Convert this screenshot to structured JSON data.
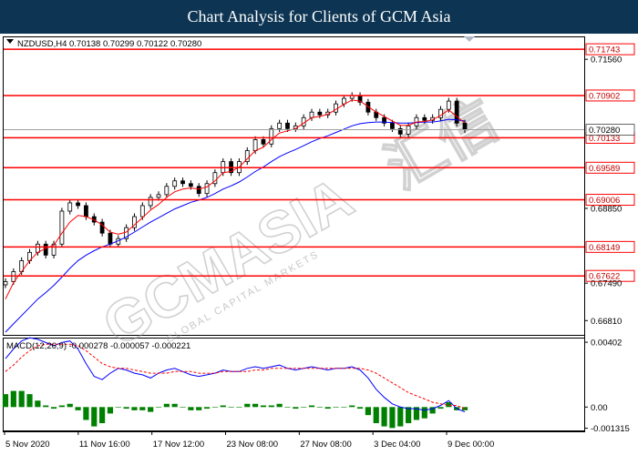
{
  "header": {
    "title": "Chart Analysis for Clients of GCM Asia"
  },
  "watermark": {
    "brand": "GCMASIA",
    "chinese": "汇信",
    "tagline": "GLOBAL CAPITAL MARKETS"
  },
  "colors": {
    "header_bg": "#0d3553",
    "level_line": "#ff0000",
    "ma_fast": "#ff0000",
    "ma_slow": "#0000ff",
    "macd_line": "#0000ff",
    "signal_line": "#ff0000",
    "histogram": "#008000"
  },
  "chart_data": [
    {
      "type": "line",
      "symbol_info": "NZDUSD,H4  0.70138 0.70299 0.70122 0.70280",
      "ylim": [
        0.6655,
        0.7196
      ],
      "y_ticks": [
        "0.71560",
        "0.68850",
        "0.67490",
        "0.66810"
      ],
      "x_ticks": [
        "5 Nov 2020",
        "11 Nov 16:00",
        "17 Nov 12:00",
        "23 Nov 08:00",
        "27 Nov 08:00",
        "3 Dec 04:00",
        "9 Dec 00:00"
      ],
      "current_price": "0.70280",
      "levels": [
        "0.71743",
        "0.70902",
        "0.70133",
        "0.69589",
        "0.69006",
        "0.68149",
        "0.67622"
      ],
      "close_series": [
        0.6752,
        0.677,
        0.679,
        0.6805,
        0.682,
        0.68,
        0.682,
        0.688,
        0.6895,
        0.689,
        0.687,
        0.686,
        0.684,
        0.682,
        0.683,
        0.685,
        0.687,
        0.689,
        0.6905,
        0.691,
        0.6925,
        0.6935,
        0.693,
        0.6925,
        0.6912,
        0.693,
        0.695,
        0.697,
        0.695,
        0.697,
        0.699,
        0.701,
        0.7002,
        0.703,
        0.704,
        0.703,
        0.7035,
        0.705,
        0.706,
        0.7055,
        0.706,
        0.7075,
        0.7085,
        0.709,
        0.7078,
        0.706,
        0.705,
        0.704,
        0.703,
        0.702,
        0.7035,
        0.705,
        0.7045,
        0.705,
        0.7065,
        0.708,
        0.704,
        0.7028
      ],
      "ma_fast": [
        0.672,
        0.675,
        0.677,
        0.679,
        0.6805,
        0.6812,
        0.6818,
        0.684,
        0.686,
        0.6872,
        0.687,
        0.6864,
        0.6855,
        0.6842,
        0.6838,
        0.6842,
        0.6855,
        0.6868,
        0.6882,
        0.6892,
        0.6905,
        0.6915,
        0.692,
        0.6922,
        0.692,
        0.6924,
        0.6935,
        0.695,
        0.6952,
        0.696,
        0.6975,
        0.699,
        0.6996,
        0.701,
        0.7022,
        0.7026,
        0.703,
        0.704,
        0.705,
        0.7052,
        0.7056,
        0.7065,
        0.7074,
        0.7082,
        0.708,
        0.707,
        0.706,
        0.7052,
        0.7044,
        0.7036,
        0.7036,
        0.7042,
        0.7043,
        0.7046,
        0.7054,
        0.7064,
        0.7052,
        0.704
      ],
      "ma_slow": [
        0.666,
        0.6675,
        0.669,
        0.6705,
        0.672,
        0.6732,
        0.6745,
        0.676,
        0.6776,
        0.679,
        0.68,
        0.6808,
        0.6815,
        0.682,
        0.6826,
        0.6833,
        0.6842,
        0.6851,
        0.686,
        0.6868,
        0.6876,
        0.6884,
        0.689,
        0.6896,
        0.69,
        0.6905,
        0.6912,
        0.692,
        0.6926,
        0.6933,
        0.6942,
        0.6952,
        0.696,
        0.697,
        0.6979,
        0.6986,
        0.6992,
        0.6999,
        0.7006,
        0.7012,
        0.7017,
        0.7023,
        0.7029,
        0.7035,
        0.7039,
        0.7041,
        0.7042,
        0.7042,
        0.7041,
        0.704,
        0.704,
        0.7041,
        0.7042,
        0.7042,
        0.7044,
        0.7047,
        0.7046,
        0.7044
      ]
    },
    {
      "type": "line",
      "label": "MACD(12,26,9) -0.000278 -0.000057 -0.000221",
      "ylim": [
        -0.00145,
        0.00425
      ],
      "y_ticks": [
        "0.00402",
        "0.00",
        "-0.001315"
      ],
      "macd": [
        0.003,
        0.0036,
        0.0041,
        0.0043,
        0.0042,
        0.004,
        0.0038,
        0.004,
        0.0041,
        0.0036,
        0.0027,
        0.0019,
        0.0017,
        0.0021,
        0.0024,
        0.0023,
        0.0021,
        0.002,
        0.0018,
        0.0021,
        0.0023,
        0.0024,
        0.0022,
        0.002,
        0.0019,
        0.002,
        0.0021,
        0.0023,
        0.0022,
        0.0022,
        0.0024,
        0.0025,
        0.0024,
        0.0025,
        0.0026,
        0.0024,
        0.0023,
        0.0024,
        0.0025,
        0.0024,
        0.0023,
        0.0024,
        0.0024,
        0.0025,
        0.0023,
        0.0018,
        0.0011,
        0.0006,
        0.0002,
        0.0,
        -0.0001,
        -0.0001,
        -0.0002,
        -0.0001,
        0.0001,
        0.0004,
        -0.0001,
        -0.0003
      ],
      "signal": [
        0.0022,
        0.0026,
        0.0031,
        0.0035,
        0.0038,
        0.0039,
        0.0039,
        0.0039,
        0.0039,
        0.0038,
        0.0035,
        0.0031,
        0.0027,
        0.0025,
        0.0024,
        0.0024,
        0.0023,
        0.0022,
        0.0021,
        0.0021,
        0.0021,
        0.0022,
        0.0022,
        0.0022,
        0.0021,
        0.0021,
        0.0021,
        0.0022,
        0.0022,
        0.0022,
        0.0022,
        0.0023,
        0.0023,
        0.0024,
        0.0024,
        0.0024,
        0.0024,
        0.0024,
        0.0024,
        0.0024,
        0.0024,
        0.0024,
        0.0024,
        0.0024,
        0.0024,
        0.0023,
        0.0021,
        0.0018,
        0.0015,
        0.0012,
        0.0009,
        0.0007,
        0.0005,
        0.0003,
        0.0002,
        0.0001,
        0.0001,
        -0.0001
      ]
    }
  ]
}
